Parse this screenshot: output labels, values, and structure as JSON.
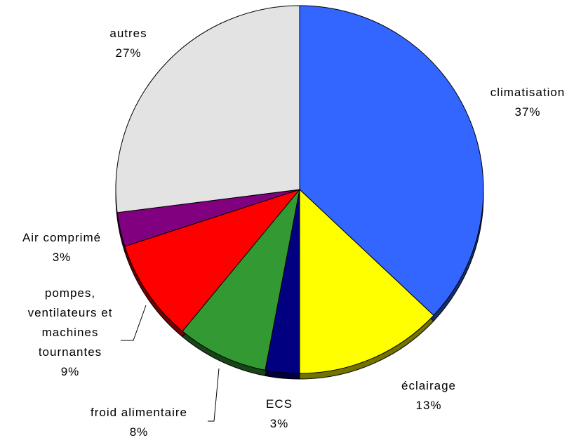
{
  "chart_data": {
    "type": "pie",
    "categories": [
      "climatisation",
      "éclairage",
      "ECS",
      "froid alimentaire",
      "pompes, ventilateurs et machines tournantes",
      "Air comprimé",
      "autres"
    ],
    "values": [
      37,
      13,
      3,
      8,
      9,
      3,
      27
    ],
    "value_labels": [
      "37%",
      "13%",
      "3%",
      "8%",
      "9%",
      "3%",
      "27%"
    ],
    "colors": [
      "#3366ff",
      "#ffff00",
      "#000080",
      "#339933",
      "#ff0000",
      "#800080",
      "#e3e3e3"
    ]
  }
}
